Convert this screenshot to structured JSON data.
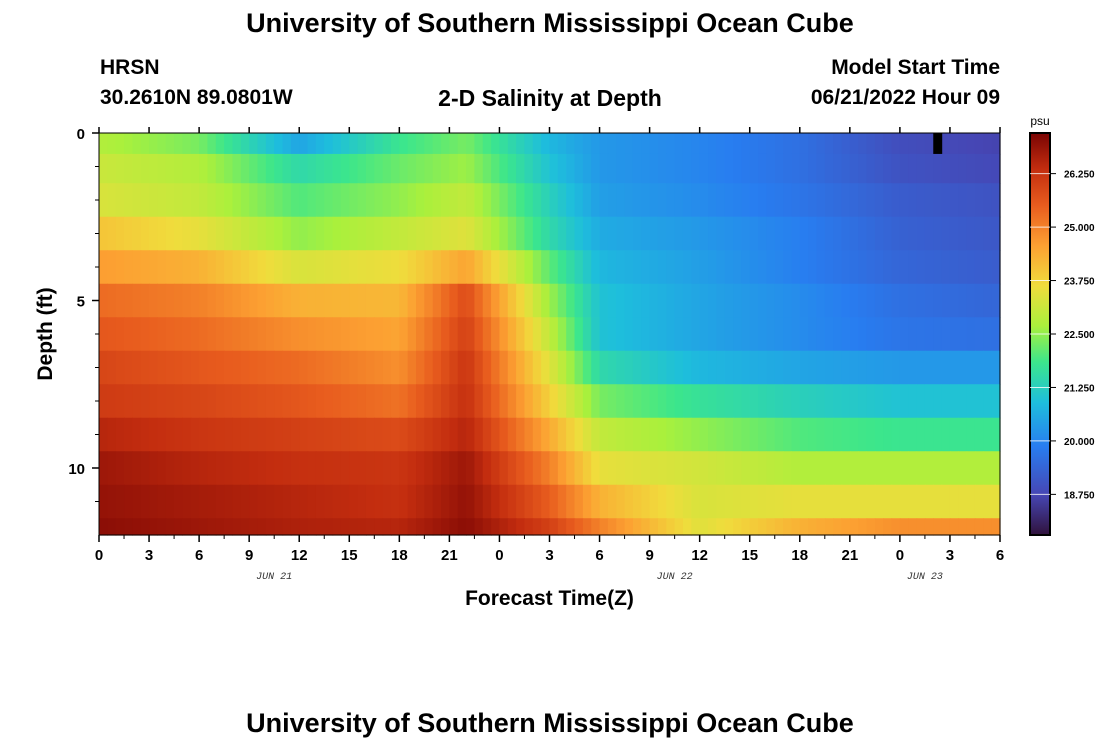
{
  "header": {
    "title_top": "University of Southern Mississippi Ocean Cube",
    "title_bottom": "University of Southern Mississippi Ocean Cube",
    "station": "HRSN",
    "coords": "30.2610N  89.0801W",
    "subtitle": "2-D Salinity at Depth",
    "model_start_label": "Model Start Time",
    "model_start_value": "06/21/2022 Hour 09"
  },
  "chart_data": {
    "type": "heatmap",
    "title": "2-D Salinity at Depth",
    "xlabel": "Forecast Time(Z)",
    "ylabel": "Depth (ft)",
    "x_tick_labels": [
      "0",
      "3",
      "6",
      "9",
      "12",
      "15",
      "18",
      "21",
      "0",
      "3",
      "6",
      "9",
      "12",
      "15",
      "18",
      "21",
      "0",
      "3",
      "6"
    ],
    "x_date_labels": [
      {
        "text": "JUN 21",
        "tick_index": 3.5
      },
      {
        "text": "JUN 22",
        "tick_index": 11.5
      },
      {
        "text": "JUN 23",
        "tick_index": 16.5
      }
    ],
    "y_tick_labels": [
      "0",
      "5",
      "10"
    ],
    "y_range_ft": [
      0,
      12
    ],
    "x_range_hours": [
      0,
      54
    ],
    "colorbar": {
      "unit": "psu",
      "min": 17.8,
      "max": 27.2,
      "tick_labels": [
        "26.250",
        "25.000",
        "23.750",
        "22.500",
        "21.250",
        "20.000",
        "18.750"
      ],
      "tick_values": [
        26.25,
        25.0,
        23.75,
        22.5,
        21.25,
        20.0,
        18.75
      ]
    },
    "rows_depth_ft": [
      0.25,
      1,
      2,
      3,
      4,
      5,
      6,
      7,
      8,
      9,
      10,
      11,
      12
    ],
    "key_hours": [
      0,
      6,
      12,
      18,
      22,
      27,
      30,
      36,
      42,
      48,
      54
    ],
    "key_values": [
      [
        22.8,
        22.3,
        20.5,
        21.8,
        22.3,
        20.8,
        20.3,
        20.0,
        19.6,
        18.9,
        18.7
      ],
      [
        23.1,
        22.8,
        21.5,
        22.2,
        22.6,
        21.0,
        20.3,
        20.0,
        19.6,
        19.0,
        18.8
      ],
      [
        23.3,
        23.0,
        22.0,
        22.5,
        23.0,
        21.3,
        20.4,
        20.1,
        19.7,
        19.2,
        19.0
      ],
      [
        24.0,
        23.5,
        22.5,
        23.0,
        23.4,
        21.5,
        20.6,
        20.3,
        19.9,
        19.3,
        19.1
      ],
      [
        24.6,
        24.3,
        23.3,
        23.6,
        24.5,
        22.1,
        20.8,
        20.4,
        19.9,
        19.4,
        19.2
      ],
      [
        25.3,
        25.0,
        24.3,
        24.2,
        25.8,
        22.6,
        21.0,
        20.5,
        20.1,
        19.6,
        19.4
      ],
      [
        25.6,
        25.3,
        24.8,
        24.5,
        26.0,
        23.0,
        21.0,
        20.5,
        20.1,
        19.7,
        19.6
      ],
      [
        25.9,
        25.6,
        25.3,
        24.8,
        26.2,
        23.4,
        21.5,
        20.8,
        20.5,
        20.3,
        20.3
      ],
      [
        26.1,
        25.9,
        25.6,
        25.2,
        26.3,
        23.8,
        22.3,
        21.7,
        21.3,
        21.0,
        21.0
      ],
      [
        26.5,
        26.2,
        26.0,
        25.8,
        26.5,
        24.4,
        23.0,
        22.5,
        22.0,
        21.8,
        21.8
      ],
      [
        26.8,
        26.5,
        26.3,
        26.2,
        26.8,
        25.0,
        23.5,
        23.2,
        22.8,
        22.8,
        22.8
      ],
      [
        26.9,
        26.7,
        26.5,
        26.3,
        26.9,
        25.5,
        24.3,
        23.3,
        23.5,
        23.5,
        23.5
      ],
      [
        27.0,
        26.8,
        26.6,
        26.5,
        27.0,
        26.0,
        25.0,
        23.4,
        24.3,
        24.8,
        24.8
      ]
    ],
    "missing_cell": {
      "depth_ft": 0.25,
      "hour": 50
    },
    "missing_color": "#000000"
  }
}
